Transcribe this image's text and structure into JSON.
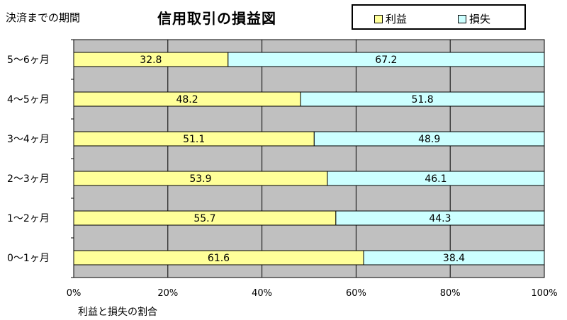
{
  "chart_data": {
    "type": "bar",
    "orientation": "horizontal",
    "stacked": true,
    "title": "信用取引の損益図",
    "ylabel": "決済までの期間",
    "xlabel": "利益と損失の割合",
    "categories": [
      "5～6ヶ月",
      "4～5ヶ月",
      "3～4ヶ月",
      "2～3ヶ月",
      "1～2ヶ月",
      "0～1ヶ月"
    ],
    "series": [
      {
        "name": "利益",
        "values": [
          32.8,
          48.2,
          51.1,
          53.9,
          55.7,
          61.6
        ],
        "color": "#ffff99"
      },
      {
        "name": "損失",
        "values": [
          67.2,
          51.8,
          48.9,
          46.1,
          44.3,
          38.4
        ],
        "color": "#ccffff"
      }
    ],
    "value_labels": {
      "profit": [
        "32.8",
        "48.2",
        "51.1",
        "53.9",
        "55.7",
        "61.6"
      ],
      "loss": [
        "67.2",
        "51.8",
        "48.9",
        "46.1",
        "44.3",
        "38.4"
      ]
    },
    "x_ticks": [
      "0%",
      "20%",
      "40%",
      "60%",
      "80%",
      "100%"
    ],
    "xlim": [
      0,
      100
    ],
    "grid": true,
    "legend_position": "top-right",
    "plot_background": "#c0c0c0"
  }
}
